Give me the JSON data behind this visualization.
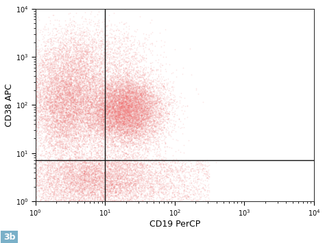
{
  "xlabel": "CD19 PerCP",
  "ylabel": "CD38 APC",
  "label": "3b",
  "xlim_log": [
    0,
    4
  ],
  "ylim_log": [
    0,
    4
  ],
  "gate_x_log": 1.0,
  "gate_y_log": 0.85,
  "dot_color": "#f07070",
  "dot_alpha": 0.18,
  "dot_size": 1.5,
  "n_points": 30000,
  "background_color": "#ffffff",
  "gate_linecolor": "#111111",
  "gate_linewidth": 1.0,
  "label_fontsize": 9,
  "axis_label_fontsize": 9,
  "label_bg": "#7ab0c8",
  "tick_fontsize": 7
}
